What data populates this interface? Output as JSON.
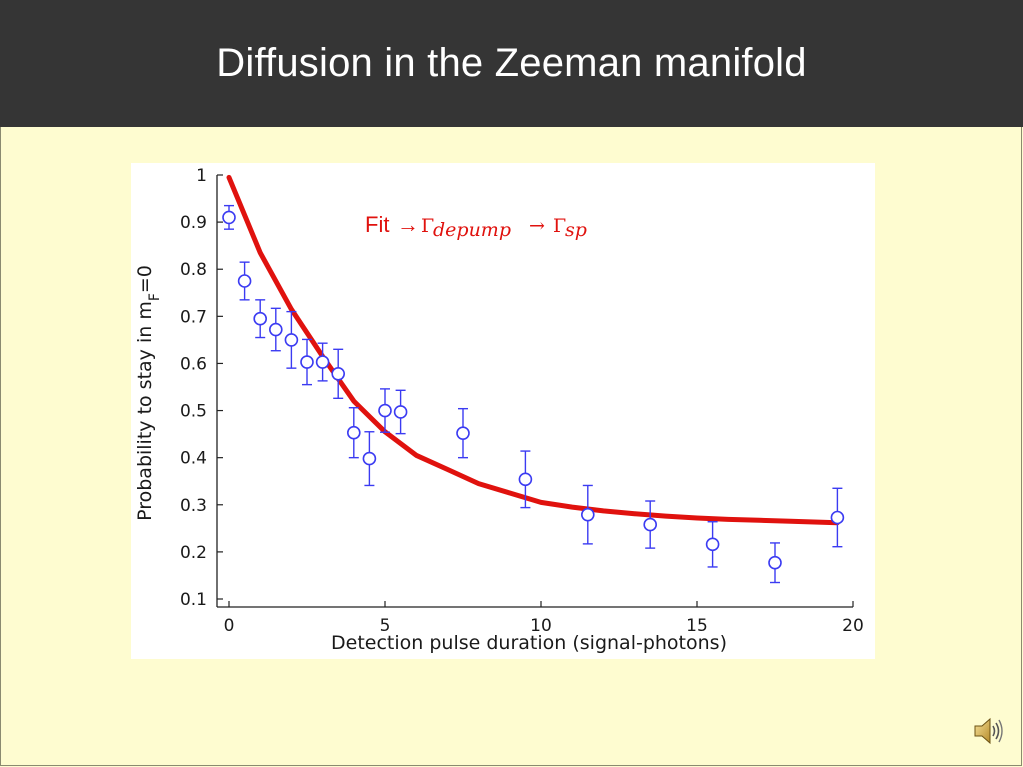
{
  "slide": {
    "title": "Diffusion in the Zeeman manifold"
  },
  "chart_data": {
    "type": "scatter",
    "title": "",
    "xlabel": "Detection pulse duration (signal-photons)",
    "ylabel_main": "Probability to stay in m",
    "ylabel_sub": "F",
    "ylabel_tail": "=0",
    "xlim": [
      0,
      20
    ],
    "ylim": [
      0.1,
      1.0
    ],
    "x_ticks": [
      0,
      5,
      10,
      15,
      20
    ],
    "y_ticks": [
      0.1,
      0.2,
      0.3,
      0.4,
      0.5,
      0.6,
      0.7,
      0.8,
      0.9,
      1.0
    ],
    "x_tick_labels": [
      "0",
      "5",
      "10",
      "15",
      "20"
    ],
    "y_tick_labels": [
      "0.1",
      "0.2",
      "0.3",
      "0.4",
      "0.5",
      "0.6",
      "0.7",
      "0.8",
      "0.9",
      "1"
    ],
    "grid": false,
    "annotation": {
      "prefix": "Fit",
      "arrow": "→",
      "gamma": "Γ",
      "sub1": "depump",
      "sub2": "sp"
    },
    "series": [
      {
        "kind": "points-with-errorbars",
        "color": "#3b3bf2",
        "points": [
          {
            "x": 0.0,
            "y": 0.91,
            "err": 0.025
          },
          {
            "x": 0.5,
            "y": 0.775,
            "err": 0.04
          },
          {
            "x": 1.0,
            "y": 0.695,
            "err": 0.04
          },
          {
            "x": 1.5,
            "y": 0.672,
            "err": 0.045
          },
          {
            "x": 2.0,
            "y": 0.65,
            "err": 0.06
          },
          {
            "x": 2.5,
            "y": 0.603,
            "err": 0.048
          },
          {
            "x": 3.0,
            "y": 0.603,
            "err": 0.04
          },
          {
            "x": 3.5,
            "y": 0.578,
            "err": 0.052
          },
          {
            "x": 4.0,
            "y": 0.453,
            "err": 0.053
          },
          {
            "x": 4.5,
            "y": 0.398,
            "err": 0.057
          },
          {
            "x": 5.0,
            "y": 0.5,
            "err": 0.046
          },
          {
            "x": 5.5,
            "y": 0.497,
            "err": 0.046
          },
          {
            "x": 7.5,
            "y": 0.452,
            "err": 0.052
          },
          {
            "x": 9.5,
            "y": 0.354,
            "err": 0.06
          },
          {
            "x": 11.5,
            "y": 0.279,
            "err": 0.062
          },
          {
            "x": 13.5,
            "y": 0.258,
            "err": 0.05
          },
          {
            "x": 15.5,
            "y": 0.216,
            "err": 0.048
          },
          {
            "x": 17.5,
            "y": 0.177,
            "err": 0.042
          },
          {
            "x": 19.5,
            "y": 0.273,
            "err": 0.062
          }
        ]
      },
      {
        "kind": "fit-line",
        "color": "#e0120e",
        "x": [
          0,
          1,
          2,
          3,
          4,
          5,
          6,
          7,
          8,
          9,
          10,
          11,
          12,
          13,
          14,
          15,
          16,
          17,
          18,
          19,
          19.5
        ],
        "y": [
          0.995,
          0.835,
          0.715,
          0.615,
          0.52,
          0.455,
          0.405,
          0.375,
          0.345,
          0.325,
          0.305,
          0.295,
          0.287,
          0.281,
          0.276,
          0.272,
          0.269,
          0.267,
          0.265,
          0.263,
          0.262
        ]
      }
    ]
  },
  "icons": {
    "speaker": "speaker-icon"
  }
}
